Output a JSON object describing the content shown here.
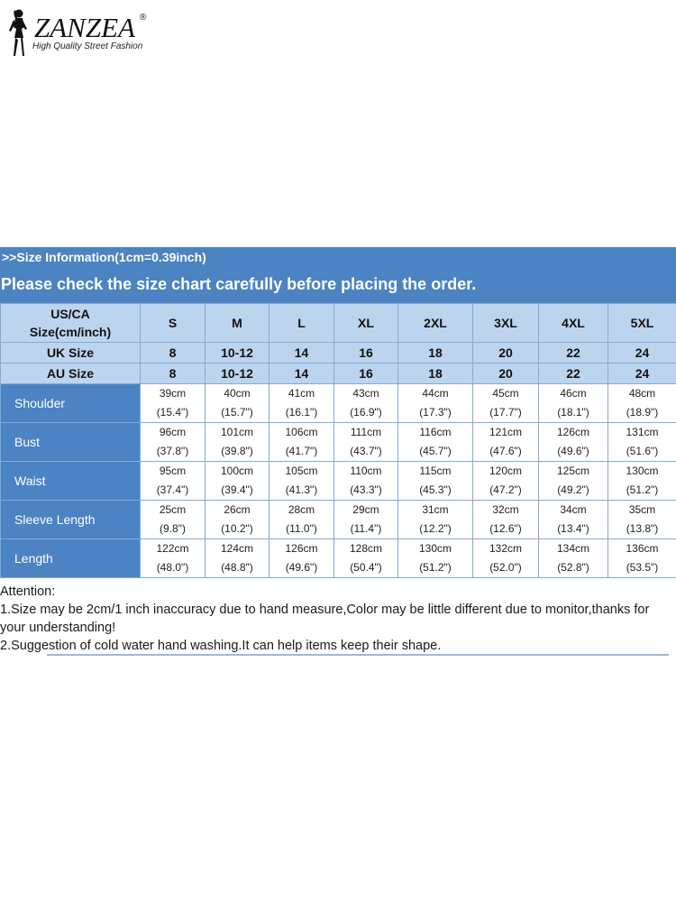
{
  "brand": {
    "name": "ZANZEA",
    "registered": "®",
    "tagline": "High Quality Street Fashion"
  },
  "banner": {
    "info": ">>Size Information(1cm=0.39inch)",
    "notice": "Please check the size chart carefully before placing the order."
  },
  "table": {
    "header_label_line1": "US/CA",
    "header_label_line2": "Size(cm/inch)",
    "sizes": [
      "S",
      "M",
      "L",
      "XL",
      "2XL",
      "3XL",
      "4XL",
      "5XL"
    ],
    "uk_label": "UK Size",
    "uk": [
      "8",
      "10-12",
      "14",
      "16",
      "18",
      "20",
      "22",
      "24"
    ],
    "au_label": "AU Size",
    "au": [
      "8",
      "10-12",
      "14",
      "16",
      "18",
      "20",
      "22",
      "24"
    ],
    "rows": [
      {
        "label": "Shoulder",
        "cm": [
          "39cm",
          "40cm",
          "41cm",
          "43cm",
          "44cm",
          "45cm",
          "46cm",
          "48cm"
        ],
        "inch": [
          "(15.4\")",
          "(15.7\")",
          "(16.1\")",
          "(16.9\")",
          "(17.3\")",
          "(17.7\")",
          "(18.1\")",
          "(18.9\")"
        ]
      },
      {
        "label": "Bust",
        "cm": [
          "96cm",
          "101cm",
          "106cm",
          "111cm",
          "116cm",
          "121cm",
          "126cm",
          "131cm"
        ],
        "inch": [
          "(37.8\")",
          "(39.8\")",
          "(41.7\")",
          "(43.7\")",
          "(45.7\")",
          "(47.6\")",
          "(49.6\")",
          "(51.6\")"
        ]
      },
      {
        "label": "Waist",
        "cm": [
          "95cm",
          "100cm",
          "105cm",
          "110cm",
          "115cm",
          "120cm",
          "125cm",
          "130cm"
        ],
        "inch": [
          "(37.4\")",
          "(39.4\")",
          "(41.3\")",
          "(43.3\")",
          "(45.3\")",
          "(47.2\")",
          "(49.2\")",
          "(51.2\")"
        ]
      },
      {
        "label": "Sleeve Length",
        "cm": [
          "25cm",
          "26cm",
          "28cm",
          "29cm",
          "31cm",
          "32cm",
          "34cm",
          "35cm"
        ],
        "inch": [
          "(9.8\")",
          "(10.2\")",
          "(11.0\")",
          "(11.4\")",
          "(12.2\")",
          "(12.6\")",
          "(13.4\")",
          "(13.8\")"
        ]
      },
      {
        "label": "Length",
        "cm": [
          "122cm",
          "124cm",
          "126cm",
          "128cm",
          "130cm",
          "132cm",
          "134cm",
          "136cm"
        ],
        "inch": [
          "(48.0\")",
          "(48.8\")",
          "(49.6\")",
          "(50.4\")",
          "(51.2\")",
          "(52.0\")",
          "(52.8\")",
          "(53.5\")"
        ]
      }
    ]
  },
  "notes": {
    "title": "Attention:",
    "line1": "1.Size may be 2cm/1 inch inaccuracy due to hand measure,Color may be little different due to monitor,thanks for your understanding!",
    "line2": "2.Suggestion of cold water hand washing.It can help items keep their shape."
  },
  "colors": {
    "banner": "#4c83c2",
    "header_fill": "#bdd4ee",
    "grid": "#86a9d2"
  }
}
